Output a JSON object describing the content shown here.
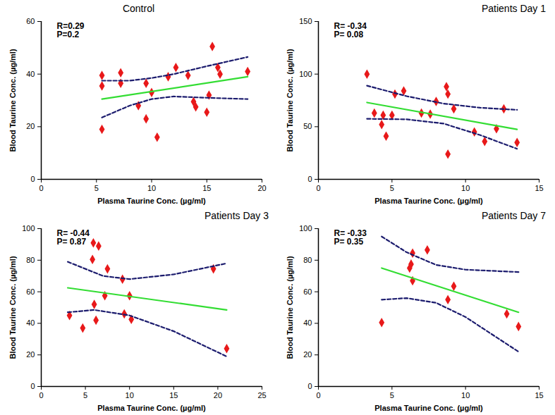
{
  "chart_data": [
    {
      "type": "scatter",
      "title": "Control",
      "x_label": "Plasma Taurine Conc. (µg/ml)",
      "y_label": "Blood Taurine Conc. (µg/ml)",
      "annotations": [
        "R=0.29",
        "P=0.2"
      ],
      "xlim": [
        0,
        20
      ],
      "xticks": [
        0,
        5,
        10,
        15,
        20
      ],
      "ylim": [
        0,
        60
      ],
      "yticks": [
        0,
        20,
        40,
        60
      ],
      "series": [
        {
          "type": "scatter",
          "marker": "diamond",
          "color": "#e8191a",
          "x": [
            5.5,
            5.5,
            5.5,
            7.2,
            7.2,
            8.8,
            9.5,
            9.5,
            10,
            10.5,
            11.5,
            12.2,
            13.3,
            13.8,
            14,
            15,
            15.2,
            15.5,
            16,
            16.2,
            18.7
          ],
          "values": [
            39.5,
            35.5,
            19,
            40.5,
            36.5,
            28,
            36.5,
            23,
            33,
            16,
            39,
            42.5,
            39.5,
            29.5,
            27.5,
            25.5,
            32,
            50.5,
            42.5,
            40,
            41
          ]
        },
        {
          "type": "line",
          "line_style": "solid",
          "color": "#33dd33",
          "x": [
            5.5,
            18.7
          ],
          "values": [
            30.5,
            39
          ]
        },
        {
          "type": "line",
          "line_style": "dashed",
          "color": "#1c1c6e",
          "x": [
            5.5,
            8,
            10,
            12,
            15,
            18.7
          ],
          "values": [
            37.5,
            37.5,
            38.5,
            40,
            43,
            46.5
          ]
        },
        {
          "type": "line",
          "line_style": "dashed",
          "color": "#1c1c6e",
          "x": [
            5.5,
            8,
            10,
            12,
            15,
            18.7
          ],
          "values": [
            23.5,
            28,
            30.5,
            31.5,
            31,
            30.5
          ]
        }
      ]
    },
    {
      "type": "scatter",
      "title": "Patients Day 1",
      "x_label": "Plasma Taurine Conc. (µg/ml)",
      "y_label": "Blood Taurine Conc. (µg/ml)",
      "annotations": [
        "R= -0.34",
        "P= 0.08"
      ],
      "xlim": [
        0,
        15
      ],
      "xticks": [
        0,
        5,
        10,
        15
      ],
      "ylim": [
        0,
        150
      ],
      "yticks": [
        0,
        50,
        100,
        150
      ],
      "series": [
        {
          "type": "scatter",
          "marker": "diamond",
          "color": "#e8191a",
          "x": [
            3.3,
            3.8,
            4.3,
            4.4,
            4.6,
            5,
            5.2,
            5.8,
            7,
            7.6,
            8,
            8.7,
            8.8,
            8.8,
            9.2,
            10.6,
            11.3,
            12.1,
            12.6,
            13.5
          ],
          "values": [
            100,
            63,
            52,
            61,
            41,
            61,
            81,
            84,
            63,
            62,
            74,
            88,
            81,
            24,
            67,
            45,
            36,
            48,
            67,
            35
          ]
        },
        {
          "type": "line",
          "line_style": "solid",
          "color": "#33dd33",
          "x": [
            3.3,
            13.5
          ],
          "values": [
            73,
            47.5
          ]
        },
        {
          "type": "line",
          "line_style": "dashed",
          "color": "#1c1c6e",
          "x": [
            3.3,
            6,
            8.5,
            11,
            13.5
          ],
          "values": [
            89,
            79,
            72,
            68,
            66
          ]
        },
        {
          "type": "line",
          "line_style": "dashed",
          "color": "#1c1c6e",
          "x": [
            3.3,
            6,
            8.5,
            11,
            13.5
          ],
          "values": [
            57.5,
            57,
            53,
            42,
            29
          ]
        }
      ]
    },
    {
      "type": "scatter",
      "title": "Patients Day 3",
      "x_label": "Plasma Taurine Conc. (µg/ml)",
      "y_label": "Blood Taurine Conc. (µg/ml)",
      "annotations": [
        "R= -0.44",
        "P= 0.87"
      ],
      "xlim": [
        0,
        25
      ],
      "xticks": [
        0,
        5,
        10,
        15,
        20,
        25
      ],
      "ylim": [
        0,
        100
      ],
      "yticks": [
        0,
        20,
        40,
        60,
        80,
        100
      ],
      "series": [
        {
          "type": "scatter",
          "marker": "diamond",
          "color": "#e8191a",
          "x": [
            3.2,
            4.7,
            5.8,
            5.9,
            6,
            6.2,
            6.5,
            7.2,
            7.5,
            9.2,
            9.4,
            10,
            10.2,
            19.5,
            21
          ],
          "values": [
            45,
            37,
            80.5,
            91,
            52,
            42,
            89,
            57.5,
            74.5,
            68,
            46,
            57.5,
            42.5,
            74.5,
            24
          ]
        },
        {
          "type": "line",
          "line_style": "solid",
          "color": "#33dd33",
          "x": [
            3,
            21
          ],
          "values": [
            62.5,
            48.5
          ]
        },
        {
          "type": "line",
          "line_style": "dashed",
          "color": "#1c1c6e",
          "x": [
            3,
            7,
            10,
            15,
            21
          ],
          "values": [
            79,
            70,
            68,
            71,
            78
          ]
        },
        {
          "type": "line",
          "line_style": "dashed",
          "color": "#1c1c6e",
          "x": [
            3,
            6,
            10,
            15,
            21
          ],
          "values": [
            47,
            48.5,
            45,
            35,
            19
          ]
        }
      ]
    },
    {
      "type": "scatter",
      "title": "Patients Day 7",
      "x_label": "Plasma Taurine Conc. (µg/ml)",
      "y_label": "Blood Taurine Conc. (µg/ml)",
      "annotations": [
        "R= -0.33",
        "P= 0.35"
      ],
      "xlim": [
        0,
        15
      ],
      "xticks": [
        0,
        5,
        10,
        15
      ],
      "ylim": [
        0,
        100
      ],
      "yticks": [
        0,
        20,
        40,
        60,
        80,
        100
      ],
      "series": [
        {
          "type": "scatter",
          "marker": "diamond",
          "color": "#e8191a",
          "x": [
            4.3,
            6.2,
            6.3,
            6.4,
            6.4,
            7.4,
            8.8,
            9.2,
            12.8,
            13.6
          ],
          "values": [
            40.5,
            75,
            77.5,
            84.5,
            67,
            86.5,
            55,
            63.5,
            46,
            38
          ]
        },
        {
          "type": "line",
          "line_style": "solid",
          "color": "#33dd33",
          "x": [
            4.3,
            13.6
          ],
          "values": [
            75,
            47
          ]
        },
        {
          "type": "line",
          "line_style": "dashed",
          "color": "#1c1c6e",
          "x": [
            4.3,
            6,
            8,
            10,
            13.6
          ],
          "values": [
            95,
            85,
            77,
            74,
            72.5
          ]
        },
        {
          "type": "line",
          "line_style": "dashed",
          "color": "#1c1c6e",
          "x": [
            4.3,
            6,
            8,
            10,
            13.6
          ],
          "values": [
            55,
            56,
            53,
            44,
            22
          ]
        }
      ]
    }
  ]
}
